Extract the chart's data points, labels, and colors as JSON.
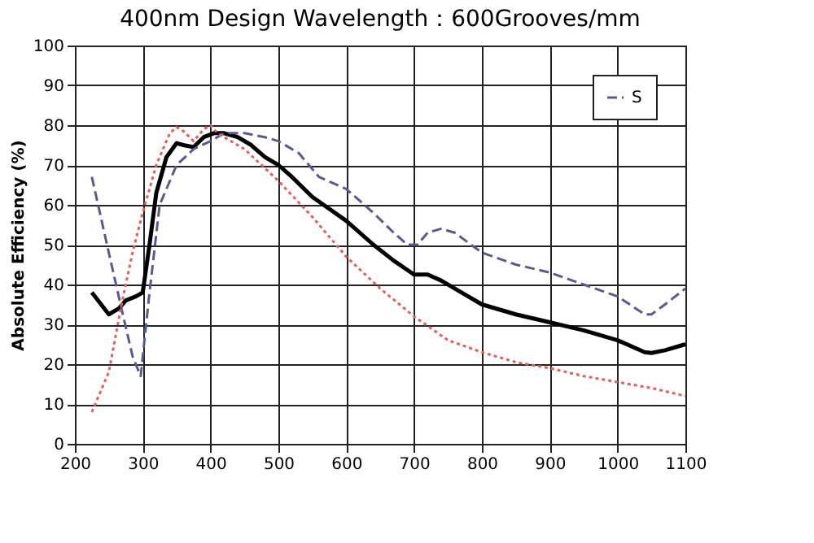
{
  "chart_data": {
    "type": "line",
    "title": "400nm Design Wavelength：600Grooves/mm",
    "ylabel": "Absolute Efficiency (%)",
    "xlim": [
      200,
      1100
    ],
    "xticks": [
      200,
      300,
      400,
      500,
      600,
      700,
      800,
      900,
      1000,
      1100
    ],
    "ylim": [
      0,
      100
    ],
    "yticks": [
      0,
      10,
      20,
      30,
      40,
      50,
      60,
      70,
      80,
      90,
      100
    ],
    "grid": true,
    "legend": "top right",
    "marker": "none",
    "series": [
      {
        "color": "#000000",
        "line_style": "solid",
        "x": [
          225,
          250,
          265,
          275,
          290,
          300,
          310,
          320,
          335,
          350,
          360,
          375,
          390,
          405,
          420,
          440,
          460,
          480,
          500,
          520,
          550,
          600,
          640,
          670,
          700,
          720,
          740,
          770,
          800,
          850,
          900,
          950,
          1000,
          1040,
          1050,
          1070,
          1100
        ],
        "values": [
          38,
          32.5,
          34,
          36,
          37,
          38,
          50,
          63,
          72,
          75.5,
          75,
          74.5,
          77,
          78,
          78,
          77,
          75,
          72,
          70,
          67,
          62,
          56,
          50,
          46,
          42.5,
          42.5,
          41,
          38,
          35,
          32.5,
          30.5,
          28.5,
          26,
          23,
          22.8,
          23.5,
          25
        ]
      },
      {
        "name": "S",
        "color": "#5a5a8e",
        "line_style": "dashed",
        "x": [
          225,
          250,
          270,
          285,
          297,
          310,
          325,
          350,
          375,
          400,
          420,
          450,
          480,
          500,
          530,
          560,
          600,
          640,
          670,
          690,
          705,
          720,
          740,
          760,
          800,
          850,
          900,
          950,
          1000,
          1040,
          1050,
          1070,
          1100
        ],
        "values": [
          67,
          48,
          33,
          22,
          17,
          38,
          60,
          70,
          74,
          76,
          78,
          78,
          77,
          76,
          73,
          67,
          64,
          58,
          53,
          50,
          50,
          53,
          54,
          53,
          48,
          45,
          43,
          40,
          37,
          32.5,
          32.5,
          35,
          39
        ]
      },
      {
        "color": "#e06060",
        "line_style": "dotted",
        "x": [
          225,
          250,
          270,
          285,
          300,
          320,
          340,
          350,
          360,
          375,
          390,
          400,
          410,
          450,
          500,
          550,
          600,
          650,
          700,
          750,
          800,
          850,
          900,
          950,
          1000,
          1050,
          1100
        ],
        "values": [
          8,
          18,
          36,
          48,
          58,
          70,
          78,
          79.5,
          78.5,
          76,
          79,
          80,
          78,
          74,
          66,
          57,
          47,
          39,
          32,
          26,
          23,
          20.5,
          19,
          17,
          15.5,
          14,
          12
        ]
      }
    ]
  }
}
